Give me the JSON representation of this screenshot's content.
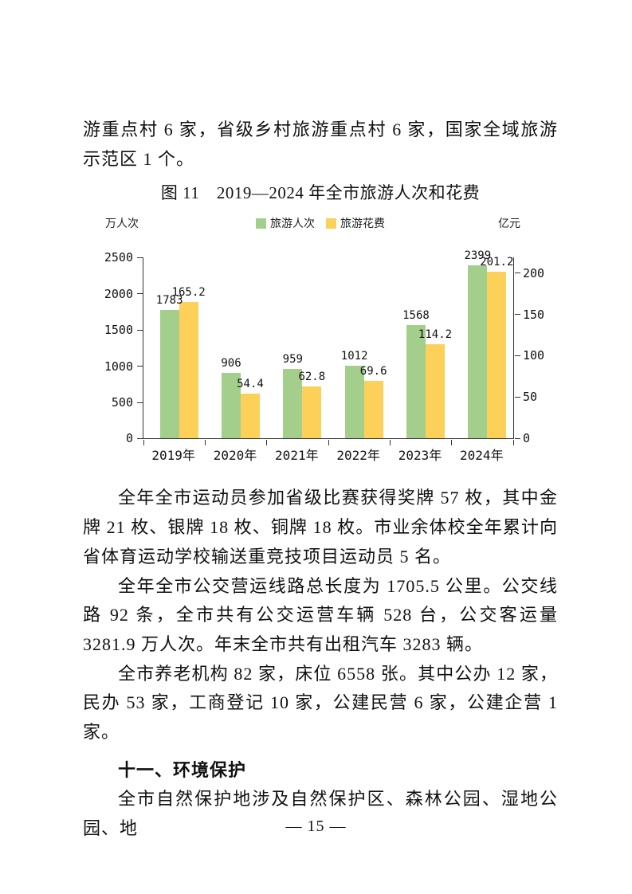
{
  "page": {
    "continuation_paragraph": "游重点村 6 家，省级乡村旅游重点村 6 家，国家全域旅游示范区 1 个。",
    "figure_caption": "图 11　2019—2024 年全市旅游人次和花费",
    "paragraphs": [
      "全年全市运动员参加省级比赛获得奖牌 57 枚，其中金牌 21 枚、银牌 18 枚、铜牌 18 枚。市业余体校全年累计向省体育运动学校输送重竞技项目运动员 5 名。",
      "全年全市公交营运线路总长度为 1705.5 公里。公交线路 92 条，全市共有公交运营车辆 528 台，公交客运量 3281.9 万人次。年末全市共有出租汽车 3283 辆。",
      "全市养老机构 82 家，床位 6558 张。其中公办 12 家，民办 53 家，工商登记 10 家，公建民营 6 家，公建企营 1 家。"
    ],
    "section_heading": "十一、环境保护",
    "last_paragraph": "全市自然保护地涉及自然保护区、森林公园、湿地公园、地",
    "page_number": "— 15 —"
  },
  "chart_data": {
    "type": "bar",
    "title": "图 11 2019—2024 年全市旅游人次和花费",
    "categories": [
      "2019年",
      "2020年",
      "2021年",
      "2022年",
      "2023年",
      "2024年"
    ],
    "series": [
      {
        "name": "旅游人次",
        "axis": "left",
        "color": "#a4ce8c",
        "values": [
          1783,
          906,
          959,
          1012,
          1568,
          2399
        ]
      },
      {
        "name": "旅游花费",
        "axis": "right",
        "color": "#fdd05a",
        "values": [
          165.2,
          54.4,
          62.8,
          69.6,
          114.2,
          201.2
        ]
      }
    ],
    "left_axis": {
      "label": "万人次",
      "ticks": [
        0,
        500,
        1000,
        1500,
        2000,
        2500
      ],
      "max": 2500
    },
    "right_axis": {
      "label": "亿元",
      "ticks": [
        0,
        50,
        100,
        150,
        200
      ],
      "max": 218.4
    },
    "legend_position": "top",
    "grid": false,
    "bar_color_text": "#111111"
  }
}
